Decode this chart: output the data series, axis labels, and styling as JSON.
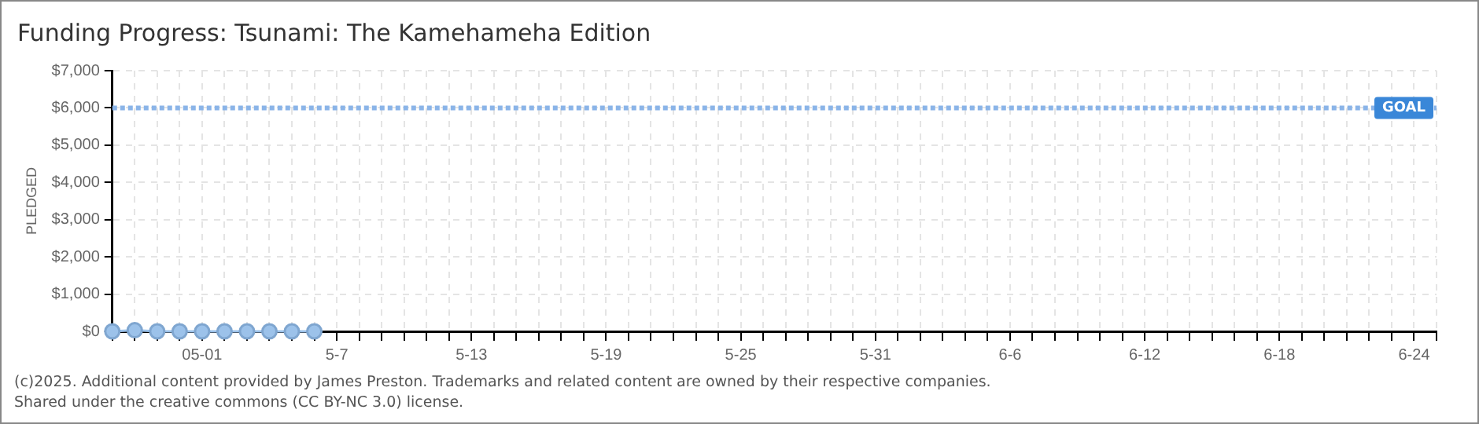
{
  "chart_data": {
    "type": "line",
    "title": "Funding Progress: Tsunami: The Kamehameha Edition",
    "ylabel": "PLEDGED",
    "x": [
      "--04-27",
      "--04-28",
      "--04-29",
      "--04-30",
      "--05-01",
      "--05-02",
      "--05-03",
      "--05-04",
      "--05-05",
      "--05-06"
    ],
    "series": [
      {
        "color": "#9cc2ea",
        "values": [
          0,
          30,
          0,
          0,
          0,
          0,
          0,
          0,
          0,
          0
        ]
      }
    ],
    "marker": "circle",
    "grid": true,
    "legend": false,
    "xlim": [
      "--04-27",
      "--06-25"
    ],
    "xticks": [
      {
        "value": "--04-27",
        "label": null
      },
      {
        "value": "--04-28",
        "label": null
      },
      {
        "value": "--04-29",
        "label": null
      },
      {
        "value": "--04-30",
        "label": null
      },
      {
        "value": "--05-01",
        "label": "05-01"
      },
      {
        "value": "--05-02",
        "label": null
      },
      {
        "value": "--05-03",
        "label": null
      },
      {
        "value": "--05-04",
        "label": null
      },
      {
        "value": "--05-05",
        "label": null
      },
      {
        "value": "--05-06",
        "label": null
      },
      {
        "value": "--05-07",
        "label": "5-7"
      },
      {
        "value": "--05-08",
        "label": null
      },
      {
        "value": "--05-09",
        "label": null
      },
      {
        "value": "--05-10",
        "label": null
      },
      {
        "value": "--05-11",
        "label": null
      },
      {
        "value": "--05-12",
        "label": null
      },
      {
        "value": "--05-13",
        "label": "5-13"
      },
      {
        "value": "--05-14",
        "label": null
      },
      {
        "value": "--05-15",
        "label": null
      },
      {
        "value": "--05-16",
        "label": null
      },
      {
        "value": "--05-17",
        "label": null
      },
      {
        "value": "--05-18",
        "label": null
      },
      {
        "value": "--05-19",
        "label": "5-19"
      },
      {
        "value": "--05-20",
        "label": null
      },
      {
        "value": "--05-21",
        "label": null
      },
      {
        "value": "--05-22",
        "label": null
      },
      {
        "value": "--05-23",
        "label": null
      },
      {
        "value": "--05-24",
        "label": null
      },
      {
        "value": "--05-25",
        "label": "5-25"
      },
      {
        "value": "--05-26",
        "label": null
      },
      {
        "value": "--05-27",
        "label": null
      },
      {
        "value": "--05-28",
        "label": null
      },
      {
        "value": "--05-29",
        "label": null
      },
      {
        "value": "--05-30",
        "label": null
      },
      {
        "value": "--05-31",
        "label": "5-31"
      },
      {
        "value": "--06-01",
        "label": null
      },
      {
        "value": "--06-02",
        "label": null
      },
      {
        "value": "--06-03",
        "label": null
      },
      {
        "value": "--06-04",
        "label": null
      },
      {
        "value": "--06-05",
        "label": null
      },
      {
        "value": "--06-06",
        "label": "6-6"
      },
      {
        "value": "--06-07",
        "label": null
      },
      {
        "value": "--06-08",
        "label": null
      },
      {
        "value": "--06-09",
        "label": null
      },
      {
        "value": "--06-10",
        "label": null
      },
      {
        "value": "--06-11",
        "label": null
      },
      {
        "value": "--06-12",
        "label": "6-12"
      },
      {
        "value": "--06-13",
        "label": null
      },
      {
        "value": "--06-14",
        "label": null
      },
      {
        "value": "--06-15",
        "label": null
      },
      {
        "value": "--06-16",
        "label": null
      },
      {
        "value": "--06-17",
        "label": null
      },
      {
        "value": "--06-18",
        "label": "6-18"
      },
      {
        "value": "--06-19",
        "label": null
      },
      {
        "value": "--06-20",
        "label": null
      },
      {
        "value": "--06-21",
        "label": null
      },
      {
        "value": "--06-22",
        "label": null
      },
      {
        "value": "--06-23",
        "label": null
      },
      {
        "value": "--06-24",
        "label": "6-24"
      },
      {
        "value": "--06-25",
        "label": null
      }
    ],
    "ylim": [
      0,
      7000
    ],
    "yticks": [
      {
        "value": 0,
        "label": "$0"
      },
      {
        "value": 1000,
        "label": "$1,000"
      },
      {
        "value": 2000,
        "label": "$2,000"
      },
      {
        "value": 3000,
        "label": "$3,000"
      },
      {
        "value": 4000,
        "label": "$4,000"
      },
      {
        "value": 5000,
        "label": "$5,000"
      },
      {
        "value": 6000,
        "label": "$6,000"
      },
      {
        "value": 7000,
        "label": "$7,000"
      }
    ],
    "ref_lines": [
      {
        "axis": "y",
        "value": 6000,
        "label": "GOAL",
        "color": "#8ab4e8",
        "line_style": "dotted"
      }
    ],
    "annotations": [
      "(c)2025. Additional content provided by James Preston. Trademarks and related content are owned by their respective companies.",
      "Shared under the creative commons (CC BY-NC 3.0) license."
    ]
  }
}
